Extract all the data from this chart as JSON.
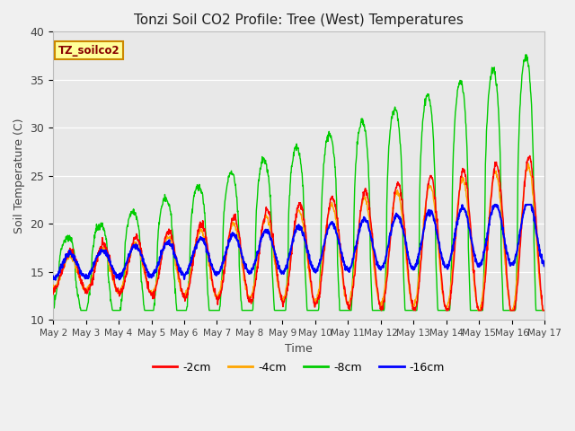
{
  "title": "Tonzi Soil CO2 Profile: Tree (West) Temperatures",
  "xlabel": "Time",
  "ylabel": "Soil Temperature (C)",
  "ylim": [
    10,
    40
  ],
  "yticks": [
    10,
    15,
    20,
    25,
    30,
    35,
    40
  ],
  "legend_label": "TZ_soilco2",
  "series_labels": [
    "-2cm",
    "-4cm",
    "-8cm",
    "-16cm"
  ],
  "series_colors": [
    "#ff0000",
    "#ffa500",
    "#00cc00",
    "#0000ff"
  ],
  "plot_bg_color": "#e8e8e8",
  "fig_bg_color": "#f0f0f0",
  "legend_box_facecolor": "#ffff99",
  "legend_box_edgecolor": "#cc8800",
  "x_tick_labels": [
    "May 2",
    "May 3",
    "May 4",
    "May 5",
    "May 6",
    "May 7",
    "May 8",
    "May 9",
    "May 10",
    "May 11",
    "May 12",
    "May 13",
    "May 14",
    "May 15",
    "May 16",
    "May 17"
  ],
  "figsize": [
    6.4,
    4.8
  ],
  "dpi": 100
}
